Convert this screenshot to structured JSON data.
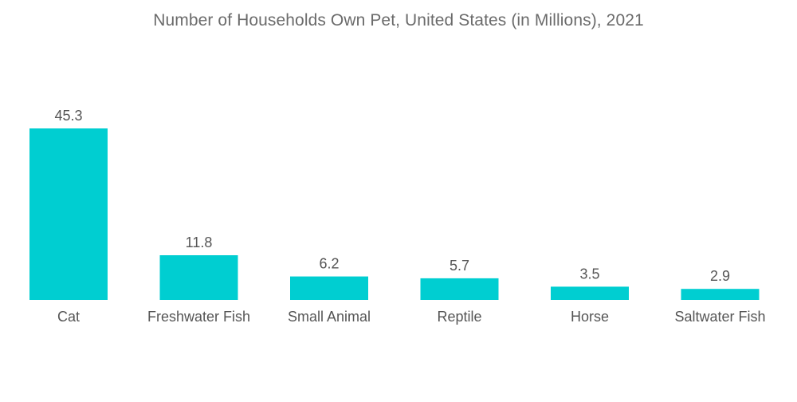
{
  "chart_data": {
    "type": "bar",
    "title": "Number of Households Own Pet, United States (in Millions), 2021",
    "categories": [
      "Cat",
      "Freshwater Fish",
      "Small Animal",
      "Reptile",
      "Horse",
      "Saltwater Fish"
    ],
    "values": [
      45.3,
      11.8,
      6.2,
      5.7,
      3.5,
      2.9
    ],
    "data_labels": [
      "45.3",
      "11.8",
      "6.2",
      "5.7",
      "3.5",
      "2.9"
    ],
    "xlabel": "",
    "ylabel": "",
    "ylim": [
      0,
      45.3
    ],
    "grid": false,
    "legend": "none",
    "bar_color": "#00CED1"
  }
}
